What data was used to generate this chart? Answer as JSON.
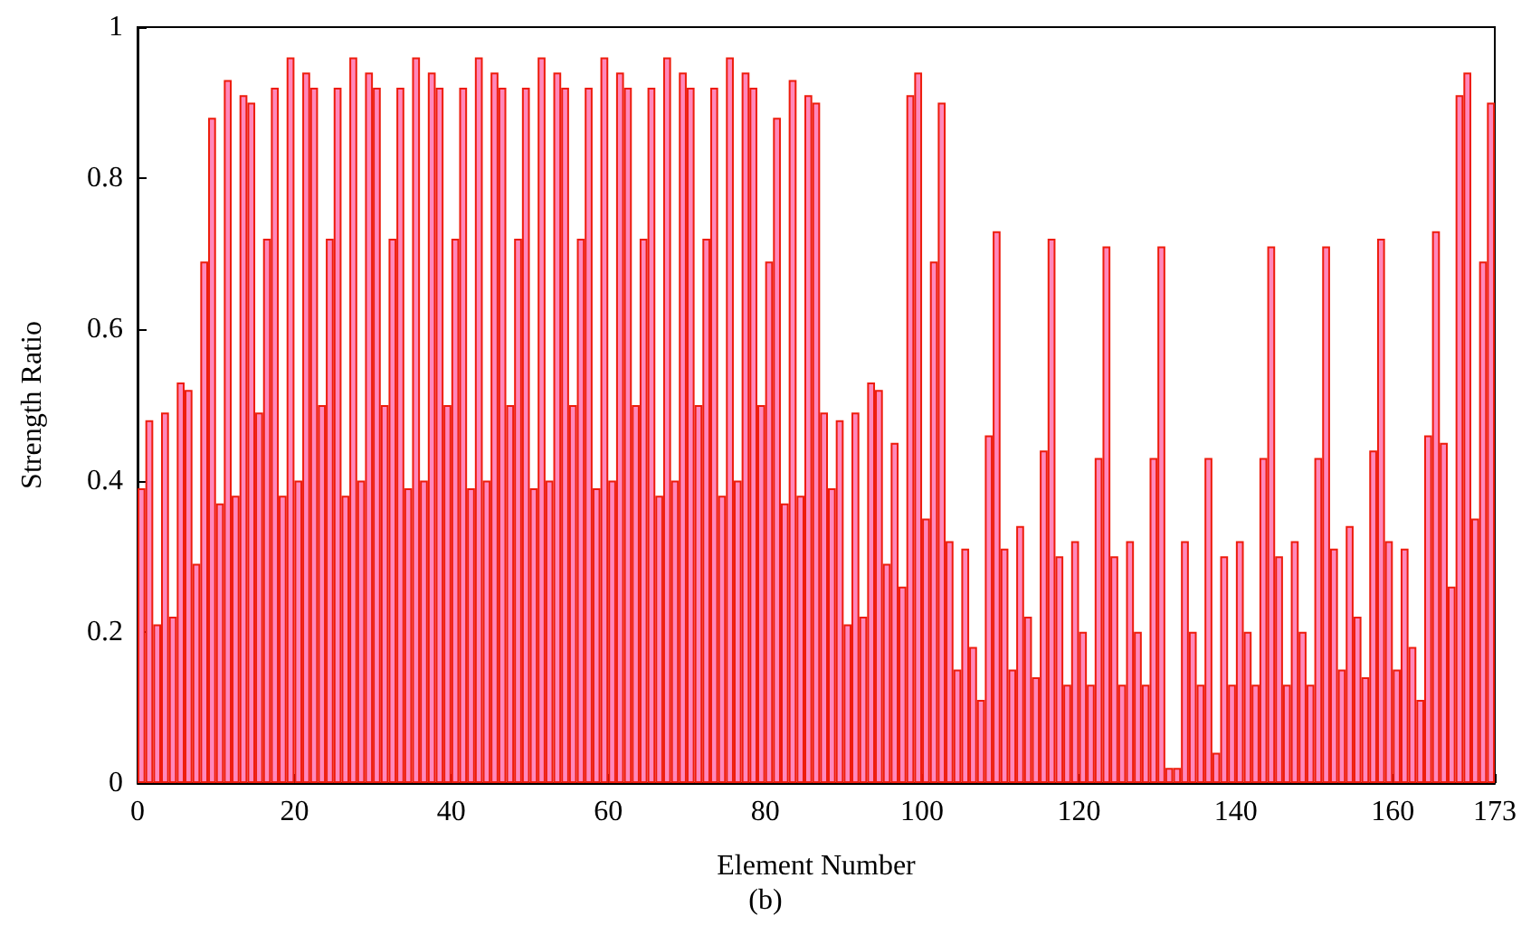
{
  "chart_data": {
    "type": "bar",
    "xlabel": "Element Number",
    "ylabel": "Strength Ratio",
    "annotations": [
      "(b)"
    ],
    "x": [
      0.5,
      1.5,
      2.5,
      3.5,
      4.5,
      5.5,
      6.5,
      7.5,
      8.5,
      9.5,
      10.5,
      11.5,
      12.5,
      13.5,
      14.5,
      15.5,
      16.5,
      17.5,
      18.5,
      19.5,
      20.5,
      21.5,
      22.5,
      23.5,
      24.5,
      25.5,
      26.5,
      27.5,
      28.5,
      29.5,
      30.5,
      31.5,
      32.5,
      33.5,
      34.5,
      35.5,
      36.5,
      37.5,
      38.5,
      39.5,
      40.5,
      41.5,
      42.5,
      43.5,
      44.5,
      45.5,
      46.5,
      47.5,
      48.5,
      49.5,
      50.5,
      51.5,
      52.5,
      53.5,
      54.5,
      55.5,
      56.5,
      57.5,
      58.5,
      59.5,
      60.5,
      61.5,
      62.5,
      63.5,
      64.5,
      65.5,
      66.5,
      67.5,
      68.5,
      69.5,
      70.5,
      71.5,
      72.5,
      73.5,
      74.5,
      75.5,
      76.5,
      77.5,
      78.5,
      79.5,
      80.5,
      81.5,
      82.5,
      83.5,
      84.5,
      85.5,
      86.5,
      87.5,
      88.5,
      89.5,
      90.5,
      91.5,
      92.5,
      93.5,
      94.5,
      95.5,
      96.5,
      97.5,
      98.5,
      99.5,
      100.5,
      101.5,
      102.5,
      103.5,
      104.5,
      105.5,
      106.5,
      107.5,
      108.5,
      109.5,
      110.5,
      111.5,
      112.5,
      113.5,
      114.5,
      115.5,
      116.5,
      117.5,
      118.5,
      119.5,
      120.5,
      121.5,
      122.5,
      123.5,
      124.5,
      125.5,
      126.5,
      127.5,
      128.5,
      129.5,
      130.5,
      131.5,
      132.5,
      133.5,
      134.5,
      135.5,
      136.5,
      137.5,
      138.5,
      139.5,
      140.5,
      141.5,
      142.5,
      143.5,
      144.5,
      145.5,
      146.5,
      147.5,
      148.5,
      149.5,
      150.5,
      151.5,
      152.5,
      153.5,
      154.5,
      155.5,
      156.5,
      157.5,
      158.5,
      159.5,
      160.5,
      161.5,
      162.5,
      163.5,
      164.5,
      165.5,
      166.5,
      167.5,
      168.5,
      169.5,
      170.5,
      171.5,
      172.5
    ],
    "values": [
      0.39,
      0.48,
      0.21,
      0.49,
      0.22,
      0.53,
      0.52,
      0.29,
      0.69,
      0.88,
      0.37,
      0.93,
      0.38,
      0.91,
      0.9,
      0.49,
      0.72,
      0.92,
      0.38,
      0.96,
      0.4,
      0.94,
      0.92,
      0.5,
      0.72,
      0.92,
      0.38,
      0.96,
      0.4,
      0.94,
      0.92,
      0.5,
      0.72,
      0.92,
      0.39,
      0.96,
      0.4,
      0.94,
      0.92,
      0.5,
      0.72,
      0.92,
      0.39,
      0.96,
      0.4,
      0.94,
      0.92,
      0.5,
      0.72,
      0.92,
      0.39,
      0.96,
      0.4,
      0.94,
      0.92,
      0.5,
      0.72,
      0.92,
      0.39,
      0.96,
      0.4,
      0.94,
      0.92,
      0.5,
      0.72,
      0.92,
      0.38,
      0.96,
      0.4,
      0.94,
      0.92,
      0.5,
      0.72,
      0.92,
      0.38,
      0.96,
      0.4,
      0.94,
      0.92,
      0.5,
      0.69,
      0.88,
      0.37,
      0.93,
      0.38,
      0.91,
      0.9,
      0.49,
      0.39,
      0.48,
      0.21,
      0.49,
      0.22,
      0.53,
      0.52,
      0.29,
      0.45,
      0.26,
      0.91,
      0.94,
      0.35,
      0.69,
      0.9,
      0.32,
      0.15,
      0.31,
      0.18,
      0.11,
      0.46,
      0.73,
      0.31,
      0.15,
      0.34,
      0.22,
      0.14,
      0.44,
      0.72,
      0.3,
      0.13,
      0.32,
      0.2,
      0.13,
      0.43,
      0.71,
      0.3,
      0.13,
      0.32,
      0.2,
      0.13,
      0.43,
      0.71,
      0.02,
      0.02,
      0.32,
      0.2,
      0.13,
      0.43,
      0.04,
      0.3,
      0.13,
      0.32,
      0.2,
      0.13,
      0.43,
      0.71,
      0.3,
      0.13,
      0.32,
      0.2,
      0.13,
      0.43,
      0.71,
      0.31,
      0.15,
      0.34,
      0.22,
      0.14,
      0.44,
      0.72,
      0.32,
      0.15,
      0.31,
      0.18,
      0.11,
      0.46,
      0.73,
      0.45,
      0.26,
      0.91,
      0.94,
      0.35,
      0.69,
      0.9
    ],
    "color": "#ff88bb",
    "xlim": [
      0,
      173
    ],
    "xticks": [
      0,
      20,
      40,
      60,
      80,
      100,
      120,
      140,
      160,
      173
    ],
    "ylim": [
      0,
      1
    ],
    "yticks": [
      0,
      0.2,
      0.4,
      0.6,
      0.8,
      1
    ],
    "grid": false
  }
}
